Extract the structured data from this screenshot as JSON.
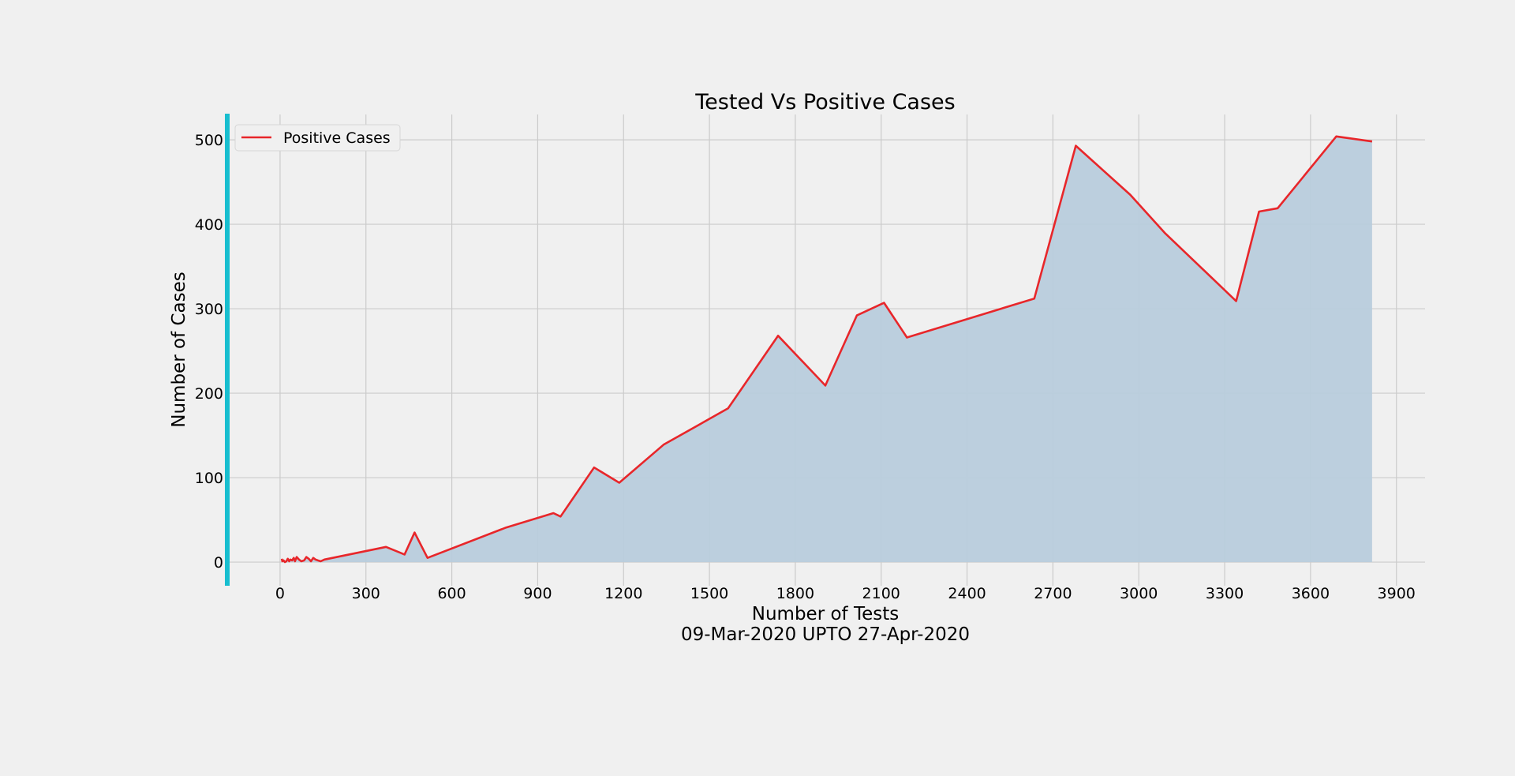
{
  "chart_data": {
    "type": "area",
    "title": "Tested Vs Positive Cases",
    "xlabel": "Number of Tests",
    "xlabel_sub": "09-Mar-2020 UPTO 27-Apr-2020",
    "ylabel": "Number of Cases",
    "xlim": [
      -190,
      4000
    ],
    "ylim": [
      -28,
      530
    ],
    "xticks": [
      0,
      300,
      600,
      900,
      1200,
      1500,
      1800,
      2100,
      2400,
      2700,
      3000,
      3300,
      3600,
      3900
    ],
    "yticks": [
      0,
      100,
      200,
      300,
      400,
      500
    ],
    "grid": true,
    "legend_position": "top-left",
    "colors": {
      "line": "#e8262a",
      "fill": "#b8ccdc",
      "accent_bar": "#17becf",
      "grid": "#cbcbcb",
      "background": "#f0f0f0"
    },
    "series": [
      {
        "name": "Positive Cases",
        "x": [
          6,
          8,
          12,
          17,
          22,
          27,
          32,
          36,
          42,
          48,
          52,
          58,
          66,
          74,
          84,
          92,
          100,
          108,
          116,
          124,
          132,
          142,
          155,
          370,
          435,
          470,
          515,
          790,
          955,
          980,
          1097,
          1185,
          1340,
          1565,
          1740,
          1905,
          2015,
          2110,
          2190,
          2635,
          2780,
          2970,
          3090,
          3340,
          3420,
          3485,
          3690,
          3815
        ],
        "y": [
          4,
          1,
          2,
          0,
          1,
          4,
          1,
          3,
          2,
          5,
          1,
          6,
          3,
          1,
          2,
          6,
          4,
          1,
          5,
          3,
          2,
          1,
          3,
          18,
          9,
          35,
          5,
          41,
          58,
          54,
          112,
          94,
          139,
          182,
          268,
          209,
          292,
          307,
          266,
          312,
          493,
          435,
          390,
          309,
          415,
          419,
          504,
          498
        ]
      }
    ]
  }
}
